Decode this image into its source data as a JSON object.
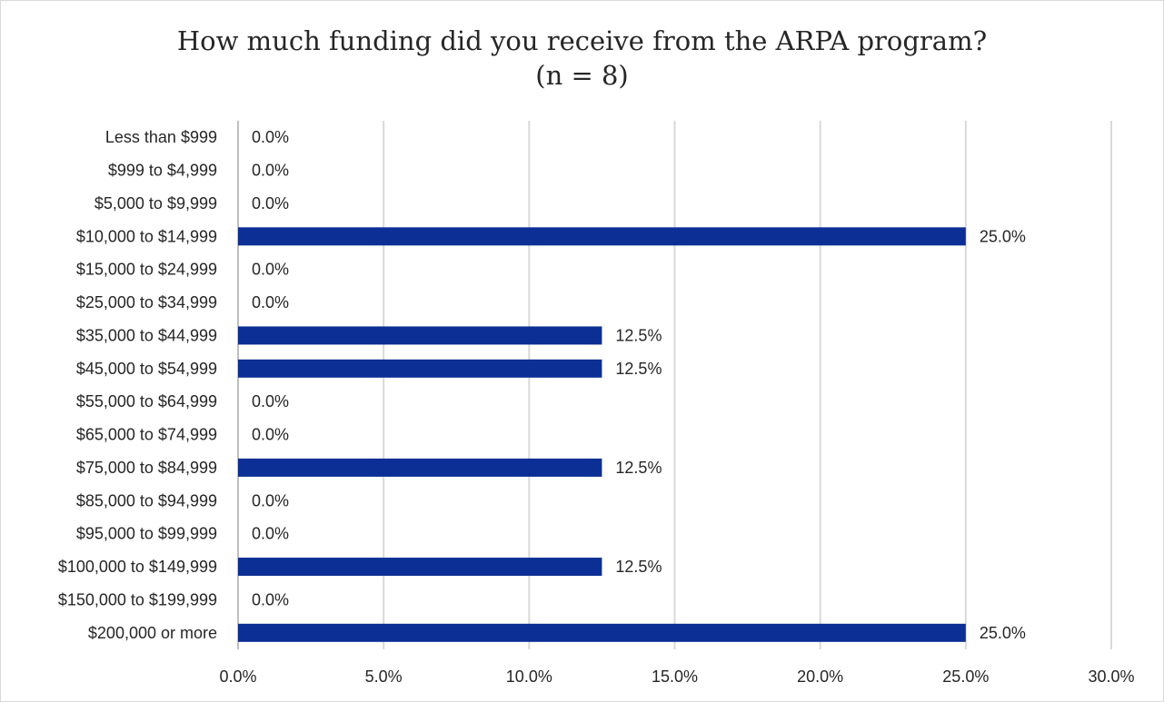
{
  "chart_data": {
    "type": "bar",
    "orientation": "horizontal",
    "title": "How much funding did you receive from the ARPA program?",
    "subtitle": "(n = 8)",
    "categories": [
      "Less than $999",
      "$999 to $4,999",
      "$5,000 to $9,999",
      "$10,000 to $14,999",
      "$15,000 to $24,999",
      "$25,000 to $34,999",
      "$35,000 to $44,999",
      "$45,000 to $54,999",
      "$55,000 to $64,999",
      "$65,000 to $74,999",
      "$75,000 to $84,999",
      "$85,000 to $94,999",
      "$95,000 to $99,999",
      "$100,000 to $149,999",
      "$150,000 to $199,999",
      "$200,000 or more"
    ],
    "values": [
      0.0,
      0.0,
      0.0,
      25.0,
      0.0,
      0.0,
      12.5,
      12.5,
      0.0,
      0.0,
      12.5,
      0.0,
      0.0,
      12.5,
      0.0,
      25.0
    ],
    "value_labels": [
      "0.0%",
      "0.0%",
      "0.0%",
      "25.0%",
      "0.0%",
      "0.0%",
      "12.5%",
      "12.5%",
      "0.0%",
      "0.0%",
      "12.5%",
      "0.0%",
      "0.0%",
      "12.5%",
      "0.0%",
      "25.0%"
    ],
    "xlim": [
      0,
      30
    ],
    "xticks": [
      0,
      5,
      10,
      15,
      20,
      25,
      30
    ],
    "xtick_labels": [
      "0.0%",
      "5.0%",
      "10.0%",
      "15.0%",
      "20.0%",
      "25.0%",
      "30.0%"
    ],
    "grid": true,
    "legend": "none",
    "bar_color": "#0b2f94",
    "grid_color": "#d9d9d9"
  }
}
